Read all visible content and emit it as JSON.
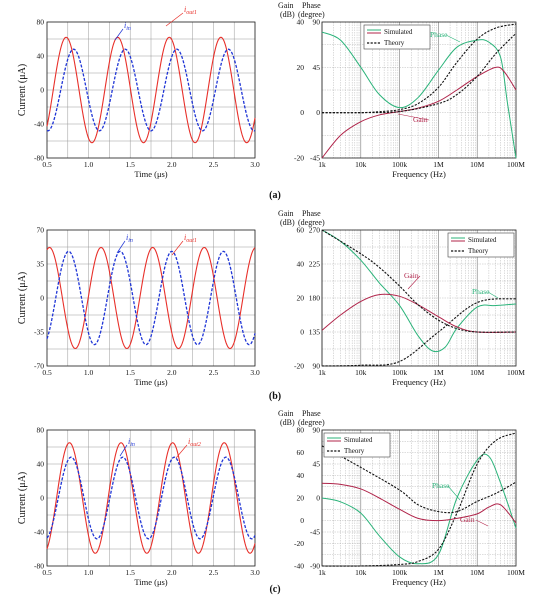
{
  "colors": {
    "current_sine": "#e8302a",
    "current_dashed": "#1f35d6",
    "simulated_phase": "#2bb37a",
    "simulated_gain": "#b0244a",
    "theory": "#111111"
  },
  "chart_data": [
    {
      "type": "line",
      "panel": "a-left",
      "ylabel": "Current (μA)",
      "xlabel": "Time (μs)",
      "xlim": [
        0.5,
        3.0
      ],
      "ylim": [
        -80,
        80
      ],
      "xticks": [
        "0.5",
        "1.0",
        "1.5",
        "2.0",
        "2.5",
        "3.0"
      ],
      "yticks": [
        "80",
        "40",
        "0",
        "-40",
        "-80"
      ],
      "series": [
        {
          "name": "iout1",
          "style": "solid-red",
          "amplitude": 62,
          "period": 0.62,
          "peak_t": 0.73
        },
        {
          "name": "iin",
          "style": "dashed-blue",
          "amplitude": 48,
          "period": 0.62,
          "peak_t": 0.82
        }
      ],
      "annotations": [
        {
          "text": "iout1",
          "sub_base": "i",
          "sub": "out1"
        },
        {
          "text": "iin",
          "sub_base": "i",
          "sub": "in"
        }
      ]
    },
    {
      "type": "line",
      "panel": "a-right",
      "ylabel_left": "Gain (dB)",
      "ylabel_right": "Phase (degree)",
      "xlabel": "Frequency (Hz)",
      "xscale": "log",
      "xlim": [
        1000,
        100000000
      ],
      "ylim_gain": [
        -20,
        40
      ],
      "ylim_phase": [
        -45,
        90
      ],
      "xticks": [
        "1k",
        "10k",
        "100k",
        "1M",
        "10M",
        "100M"
      ],
      "yticks_gain": [
        "40",
        "20",
        "0",
        "-20"
      ],
      "yticks_phase": [
        "90",
        "45",
        "0",
        "-45"
      ],
      "legend": [
        "Simulated",
        "Theory"
      ],
      "legend_placement": "top-left",
      "annotations": [
        "Phase",
        "Gain"
      ],
      "series": [
        {
          "name": "Phase (simulated)",
          "axis": "phase",
          "x": [
            1000,
            3000,
            10000,
            30000,
            100000,
            300000,
            1000000,
            3000000,
            10000000,
            20000000,
            40000000,
            60000000,
            100000000
          ],
          "y": [
            80,
            72,
            45,
            18,
            5,
            15,
            42,
            65,
            72,
            70,
            55,
            10,
            -45
          ]
        },
        {
          "name": "Phase (theory)",
          "axis": "phase",
          "x": [
            1000,
            10000,
            30000,
            100000,
            300000,
            1000000,
            3000000,
            10000000,
            30000000,
            100000000
          ],
          "y": [
            0,
            0,
            1,
            3,
            9,
            25,
            50,
            73,
            84,
            88
          ]
        },
        {
          "name": "Gain (simulated)",
          "axis": "gain",
          "x": [
            1000,
            3000,
            10000,
            30000,
            100000,
            300000,
            1000000,
            3000000,
            10000000,
            30000000,
            50000000,
            100000000
          ],
          "y": [
            -20,
            -10,
            -4,
            -1,
            0.5,
            2,
            5,
            10,
            16,
            20,
            18,
            10
          ]
        },
        {
          "name": "Gain (theory)",
          "axis": "gain",
          "x": [
            1000,
            10000,
            100000,
            1000000,
            3000000,
            10000000,
            30000000,
            100000000
          ],
          "y": [
            0,
            0,
            0.5,
            4,
            8,
            16,
            26,
            35
          ]
        }
      ]
    },
    {
      "type": "line",
      "panel": "b-left",
      "ylabel": "Current (μA)",
      "xlabel": "Time (μs)",
      "xlim": [
        0.5,
        3.0
      ],
      "ylim": [
        -70,
        70
      ],
      "xticks": [
        "0.5",
        "1.0",
        "1.5",
        "2.0",
        "2.5",
        "3.0"
      ],
      "yticks": [
        "70",
        "35",
        "0",
        "-35",
        "-70"
      ],
      "series": [
        {
          "name": "iout1",
          "style": "solid-red",
          "amplitude": 52,
          "period": 0.62,
          "peak_t": 0.53
        },
        {
          "name": "iin",
          "style": "dashed-blue",
          "amplitude": 48,
          "period": 0.62,
          "peak_t": 0.76
        }
      ],
      "annotations": [
        {
          "text": "iin",
          "sub_base": "i",
          "sub": "in"
        },
        {
          "text": "iout1",
          "sub_base": "i",
          "sub": "out1"
        }
      ]
    },
    {
      "type": "line",
      "panel": "b-right",
      "ylabel_left": "Gain (dB)",
      "ylabel_right": "Phase (degree)",
      "xlabel": "Frequency (Hz)",
      "xscale": "log",
      "xlim": [
        1000,
        100000000
      ],
      "ylim_gain": [
        -20,
        60
      ],
      "ylim_phase": [
        90,
        270
      ],
      "xticks": [
        "1k",
        "10k",
        "100k",
        "1M",
        "10M",
        "100M"
      ],
      "yticks_gain": [
        "60",
        "40",
        "20",
        "0",
        "-20"
      ],
      "yticks_phase": [
        "270",
        "225",
        "180",
        "135",
        "90"
      ],
      "legend": [
        "Simulated",
        "Theory"
      ],
      "legend_placement": "top-right",
      "annotations": [
        "Gain",
        "Phase"
      ],
      "series": [
        {
          "name": "Phase (simulated)",
          "axis": "phase",
          "x": [
            1000,
            3000,
            10000,
            30000,
            100000,
            300000,
            700000,
            1500000,
            3000000,
            10000000,
            30000000,
            100000000
          ],
          "y": [
            270,
            255,
            230,
            200,
            170,
            130,
            110,
            115,
            140,
            168,
            170,
            172
          ]
        },
        {
          "name": "Phase (theory)",
          "axis": "phase",
          "x": [
            1000,
            10000,
            100000,
            1000000,
            10000000,
            100000000
          ],
          "y": [
            90,
            91,
            96,
            135,
            174,
            179
          ]
        },
        {
          "name": "Gain (simulated)",
          "axis": "gain",
          "x": [
            1000,
            3000,
            10000,
            30000,
            100000,
            300000,
            1000000,
            3000000,
            10000000,
            100000000
          ],
          "y": [
            1,
            10,
            18,
            22,
            21,
            16,
            9,
            3,
            0,
            0
          ]
        },
        {
          "name": "Gain (theory)",
          "axis": "gain",
          "x": [
            1000,
            10000,
            30000,
            100000,
            300000,
            1000000,
            3000000,
            10000000,
            100000000
          ],
          "y": [
            60,
            46,
            38,
            27,
            16,
            7,
            2,
            0,
            0
          ]
        }
      ]
    },
    {
      "type": "line",
      "panel": "c-left",
      "ylabel": "Current (μA)",
      "xlabel": "Time (μs)",
      "xlim": [
        0.5,
        3.0
      ],
      "ylim": [
        -80,
        80
      ],
      "xticks": [
        "0.5",
        "1.0",
        "1.5",
        "2.0",
        "2.5",
        "3.0"
      ],
      "yticks": [
        "80",
        "40",
        "0",
        "-40",
        "-80"
      ],
      "series": [
        {
          "name": "iout2",
          "style": "solid-red",
          "amplitude": 65,
          "period": 0.62,
          "peak_t": 0.77
        },
        {
          "name": "iin",
          "style": "dashed-blue",
          "amplitude": 48,
          "period": 0.62,
          "peak_t": 0.79
        }
      ],
      "annotations": [
        {
          "text": "iin",
          "sub_base": "i",
          "sub": "in"
        },
        {
          "text": "iout2",
          "sub_base": "i",
          "sub": "out2"
        }
      ]
    },
    {
      "type": "line",
      "panel": "c-right",
      "ylabel_left": "Gain (dB)",
      "ylabel_right": "Phase (degree)",
      "xlabel": "Frequency (Hz)",
      "xscale": "log",
      "xlim": [
        1000,
        100000000
      ],
      "ylim_gain": [
        -40,
        80
      ],
      "ylim_phase": [
        -90,
        90
      ],
      "xticks": [
        "1k",
        "10k",
        "100k",
        "1M",
        "10M",
        "100M"
      ],
      "yticks_gain": [
        "80",
        "60",
        "40",
        "20",
        "0",
        "-20",
        "-40"
      ],
      "yticks_phase": [
        "90",
        "45",
        "0",
        "-45",
        "-90"
      ],
      "legend": [
        "Simulated",
        "Theory"
      ],
      "legend_placement": "top-center",
      "annotations": [
        "Phase",
        "Gain"
      ],
      "series": [
        {
          "name": "Phase (simulated)",
          "axis": "phase",
          "x": [
            1000,
            3000,
            10000,
            30000,
            100000,
            300000,
            1000000,
            3000000,
            10000000,
            20000000,
            40000000,
            100000000
          ],
          "y": [
            0,
            -5,
            -20,
            -50,
            -78,
            -87,
            -75,
            0,
            50,
            55,
            20,
            -40
          ]
        },
        {
          "name": "Phase (theory)",
          "axis": "phase",
          "x": [
            1000,
            10000,
            100000,
            300000,
            1000000,
            3000000,
            10000000,
            30000000,
            100000000
          ],
          "y": [
            -90,
            -90,
            -88,
            -84,
            -68,
            -20,
            45,
            76,
            86
          ]
        },
        {
          "name": "Gain (simulated)",
          "axis": "gain",
          "x": [
            1000,
            3000,
            10000,
            30000,
            100000,
            300000,
            1000000,
            3000000,
            10000000,
            20000000,
            40000000,
            100000000
          ],
          "y": [
            33,
            32,
            28,
            20,
            10,
            2,
            0,
            2,
            6,
            12,
            14,
            -2
          ]
        },
        {
          "name": "Gain (theory)",
          "axis": "gain",
          "x": [
            1000,
            10000,
            100000,
            300000,
            1000000,
            3000000,
            10000000,
            30000000,
            100000000
          ],
          "y": [
            66,
            47,
            27,
            14,
            8,
            8,
            17,
            24,
            34
          ]
        }
      ]
    }
  ],
  "panel_labels": [
    "(a)",
    "(b)",
    "(c)"
  ]
}
